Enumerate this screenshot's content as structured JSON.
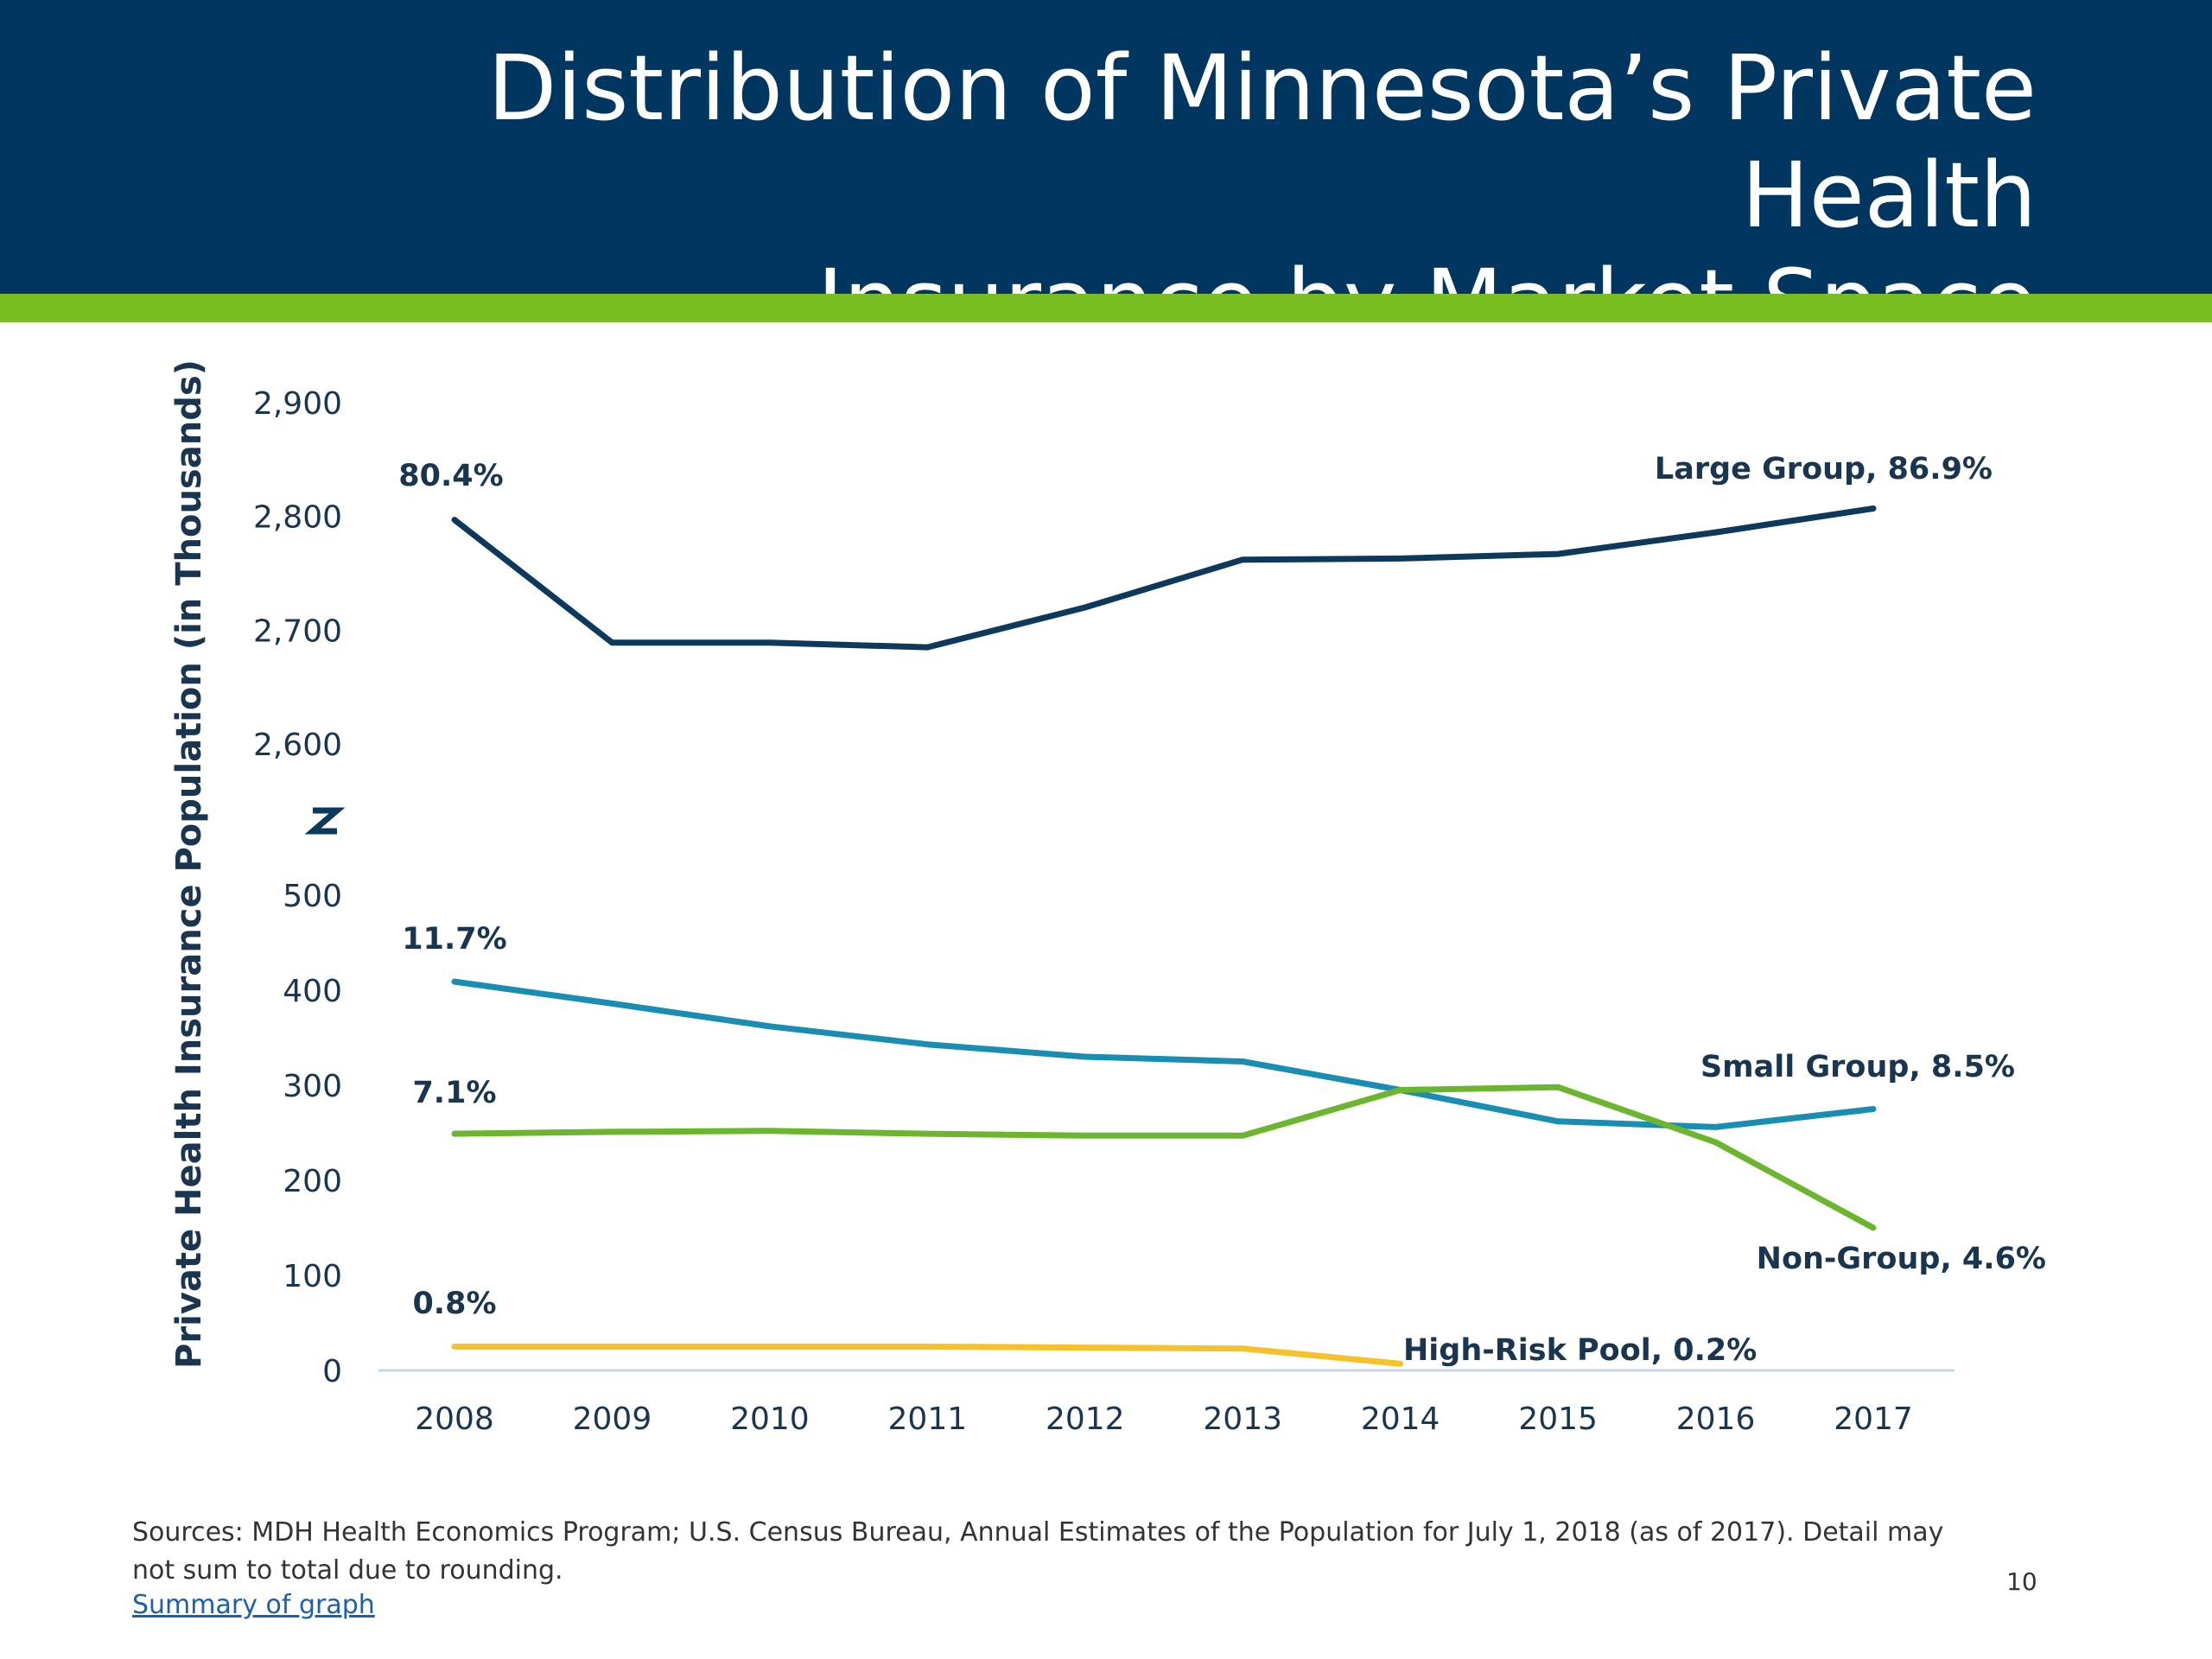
{
  "slide": {
    "title_line1": "Distribution of Minnesota’s Private Health",
    "title_line2": "Insurance by Market Space",
    "sources": "Sources: MDH Health Economics Program; U.S. Census Bureau, Annual Estimates of the Population for July 1, 2018 (as of 2017). Detail may not sum to total due to rounding.",
    "summary_link": "Summary of graph",
    "page_number": "10",
    "colors": {
      "header": "#003660",
      "accent": "#78be20",
      "large_group": "#0d3a5c",
      "small_group": "#1a8db3",
      "non_group": "#6bb52f",
      "high_risk_pool": "#f5c22c"
    }
  },
  "chart_data": {
    "type": "line",
    "title": "Distribution of Minnesota’s Private Health Insurance by Market Space",
    "ylabel": "Private Health Insurance Population (in Thousands)",
    "x": [
      2008,
      2009,
      2010,
      2011,
      2012,
      2013,
      2014,
      2015,
      2016,
      2017
    ],
    "axis_break": true,
    "ylim_lower": [
      0,
      500
    ],
    "ylim_upper": [
      2600,
      2900
    ],
    "yticks_lower": [
      "0",
      "100",
      "200",
      "300",
      "400",
      "500"
    ],
    "yticks_upper": [
      "2,600",
      "2,700",
      "2,800",
      "2,900"
    ],
    "series": [
      {
        "name": "Large Group",
        "color": "#0d3a5c",
        "x": [
          2008,
          2009,
          2010,
          2011,
          2012,
          2013,
          2014,
          2015,
          2016,
          2017
        ],
        "values": [
          2797,
          2689,
          2689,
          2685,
          2720,
          2762,
          2763,
          2767,
          2786,
          2807
        ],
        "start_label": "80.4%",
        "end_label": "Large Group, 86.9%"
      },
      {
        "name": "Small Group",
        "color": "#1a8db3",
        "x": [
          2008,
          2009,
          2010,
          2011,
          2012,
          2013,
          2014,
          2015,
          2016,
          2017
        ],
        "values": [
          409,
          386,
          362,
          343,
          330,
          325,
          295,
          262,
          256,
          275
        ],
        "start_label": "11.7%",
        "end_label": "Small Group, 8.5%"
      },
      {
        "name": "Non-Group",
        "color": "#6bb52f",
        "x": [
          2008,
          2009,
          2010,
          2011,
          2012,
          2013,
          2014,
          2015,
          2016,
          2017
        ],
        "values": [
          249,
          251,
          252,
          249,
          247,
          247,
          295,
          298,
          240,
          150
        ],
        "start_label": "7.1%",
        "end_label": "Non-Group, 4.6%"
      },
      {
        "name": "High-Risk Pool",
        "color": "#f5c22c",
        "x": [
          2008,
          2009,
          2010,
          2011,
          2012,
          2013,
          2014
        ],
        "values": [
          25,
          25,
          25,
          25,
          24,
          23,
          7
        ],
        "start_label": "0.8%",
        "end_label": "High-Risk Pool, 0.2%"
      }
    ],
    "grid": false,
    "legend": "none (direct line labels)"
  }
}
